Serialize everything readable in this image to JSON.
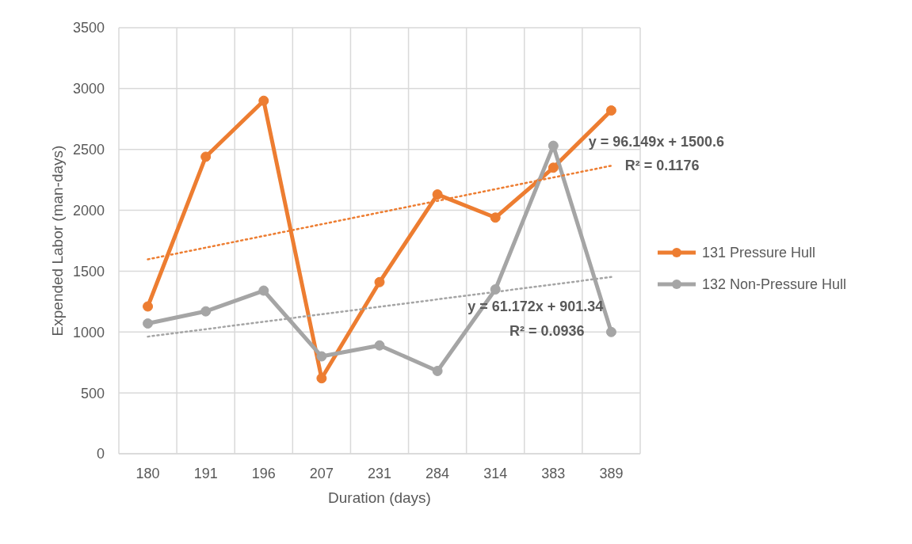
{
  "chart_data": {
    "type": "line",
    "xlabel": "Duration (days)",
    "ylabel": "Expended Labor (man-days)",
    "categories": [
      "180",
      "191",
      "196",
      "207",
      "231",
      "284",
      "314",
      "383",
      "389"
    ],
    "series": [
      {
        "name": "131 Pressure Hull",
        "color": "#ed7d31",
        "values": [
          1210,
          2440,
          2900,
          620,
          1410,
          2130,
          1940,
          2350,
          2820
        ],
        "marker": "circle",
        "line_style": "solid"
      },
      {
        "name": "132 Non-Pressure Hull",
        "color": "#a5a5a5",
        "values": [
          1070,
          1170,
          1340,
          800,
          890,
          680,
          1350,
          2530,
          1000
        ],
        "marker": "circle",
        "line_style": "solid"
      },
      {
        "type": "line",
        "color": "#ed7d31",
        "x": [
          "180",
          "389"
        ],
        "values": [
          1597,
          2366
        ],
        "marker": "none",
        "line_style": "dotted"
      },
      {
        "type": "line",
        "color": "#a5a5a5",
        "x": [
          "180",
          "389"
        ],
        "values": [
          962,
          1452
        ],
        "marker": "none",
        "line_style": "dotted"
      }
    ],
    "ylim": [
      0,
      3500
    ],
    "yticks": [
      0,
      500,
      1000,
      1500,
      2000,
      2500,
      3000,
      3500
    ],
    "grid": true,
    "legend": "right",
    "annotations": [
      "y = 96.149x + 1500.6",
      "R² = 0.1176",
      "y = 61.172x + 901.34",
      "R² = 0.0936"
    ]
  }
}
